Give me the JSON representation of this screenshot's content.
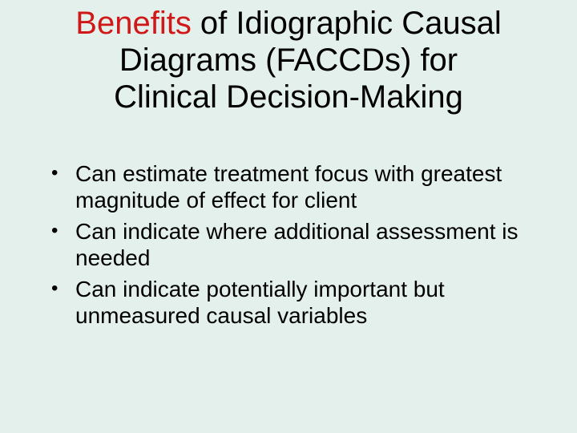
{
  "slide": {
    "background_color": "#e4f0eb",
    "text_color": "#000000",
    "accent_color": "#d01818",
    "font_family": "Arial",
    "title": {
      "word_benefits": "Benefits",
      "rest_line1": " of Idiographic Causal",
      "line2": "Diagrams (FACCDs) for",
      "line3": "Clinical Decision-Making",
      "fontsize": 40
    },
    "bullets": {
      "fontsize": 28,
      "items": [
        "Can estimate treatment focus with greatest magnitude of effect for client",
        "Can indicate where additional assessment is needed",
        "Can indicate potentially important but unmeasured causal variables"
      ]
    }
  }
}
